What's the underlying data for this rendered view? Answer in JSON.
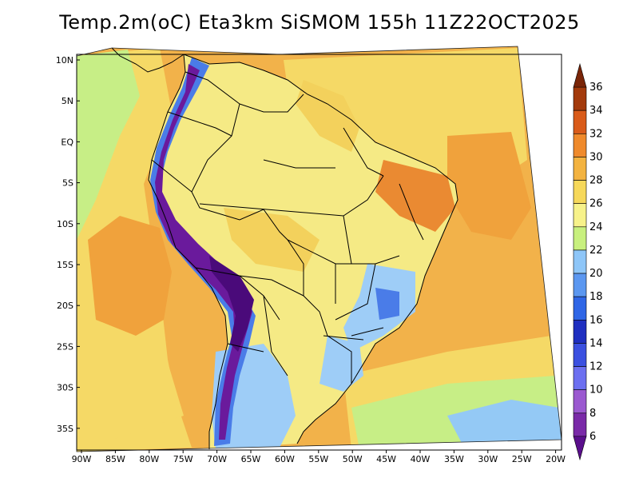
{
  "title": "Temp.2m(oC) Eta3km SiSMOM 155h 11Z22OCT2025",
  "lat_labels": [
    "10N",
    "5N",
    "EQ",
    "5S",
    "10S",
    "15S",
    "20S",
    "25S",
    "30S",
    "35S"
  ],
  "lon_labels": [
    "90W",
    "85W",
    "80W",
    "75W",
    "70W",
    "65W",
    "60W",
    "55W",
    "50W",
    "45W",
    "40W",
    "35W",
    "30W",
    "25W",
    "20W"
  ],
  "colorbar": {
    "labels": [
      "6",
      "8",
      "10",
      "12",
      "14",
      "16",
      "18",
      "20",
      "22",
      "24",
      "26",
      "28",
      "30",
      "32",
      "34",
      "36"
    ],
    "colors": [
      "#5a0f8c",
      "#7a2aa8",
      "#9b59d0",
      "#6c6ff0",
      "#3b50e0",
      "#1f2fc0",
      "#2f66e6",
      "#5b97f0",
      "#8ec6f8",
      "#c8f07e",
      "#f7f28a",
      "#f6d85a",
      "#f3b340",
      "#ef8a2c",
      "#d95b1a",
      "#a33a0c",
      "#7a2508"
    ]
  },
  "palette": {
    "ocean_warm": "#f2b24a",
    "ocean_hot": "#f0a23c",
    "ocean_mild": "#f5d966",
    "ocean_cool": "#c7ee86",
    "ocean_cold": "#94c9f5",
    "land_main": "#f5ea85",
    "land_warm": "#f3d15c",
    "land_hot": "#ea8a32",
    "highland_cool": "#9ecdf7",
    "highland_cold": "#4a7ce8",
    "andes_violet": "#6a1a9c",
    "andes_deep": "#4a0a7a",
    "border": "#000000"
  }
}
